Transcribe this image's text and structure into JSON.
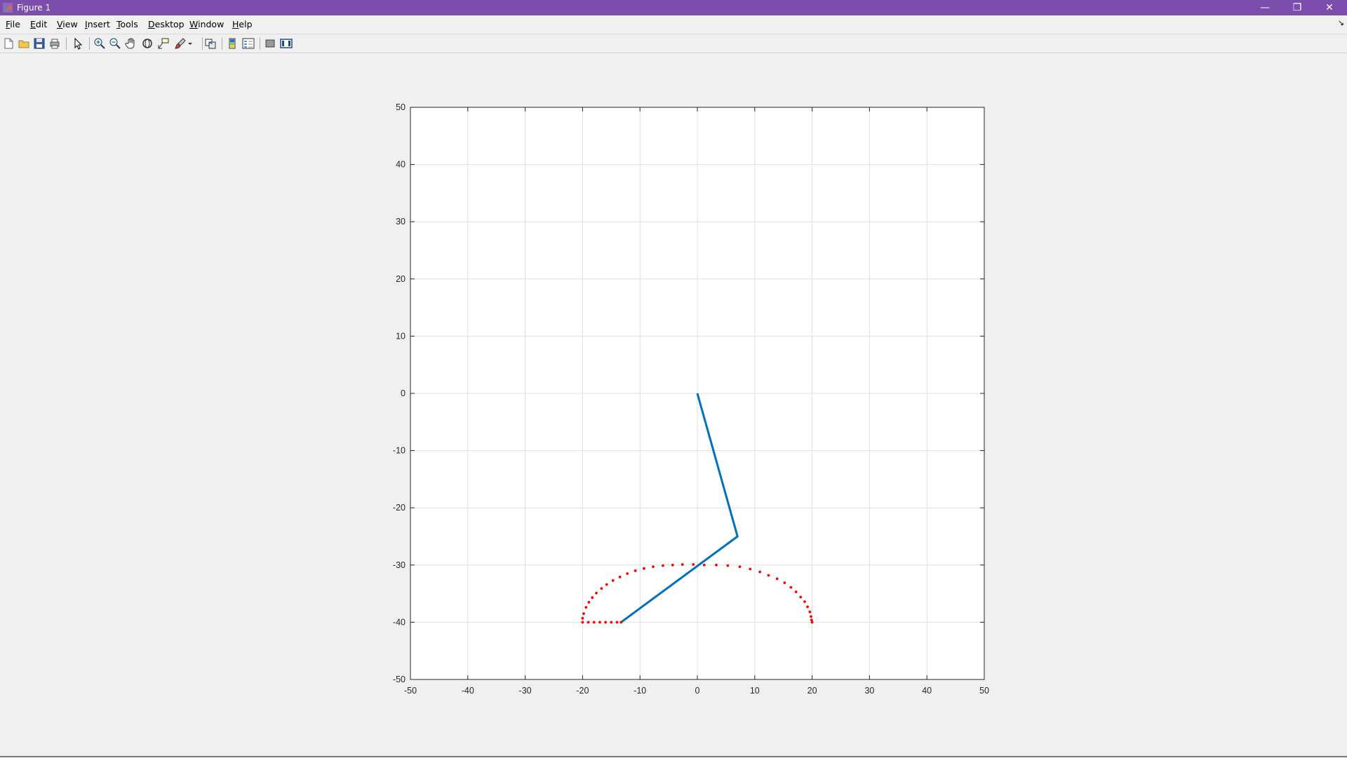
{
  "window": {
    "title": "Figure 1",
    "accent": "#7a4eaa",
    "minimize_glyph": "—",
    "restore_glyph": "❐",
    "close_glyph": "✕"
  },
  "menu": {
    "items": [
      {
        "mnemonic": "F",
        "rest": "ile"
      },
      {
        "mnemonic": "E",
        "rest": "dit"
      },
      {
        "mnemonic": "V",
        "rest": "iew"
      },
      {
        "mnemonic": "I",
        "rest": "nsert"
      },
      {
        "mnemonic": "T",
        "rest": "ools"
      },
      {
        "mnemonic": "D",
        "rest": "esktop"
      },
      {
        "mnemonic": "W",
        "rest": "indow"
      },
      {
        "mnemonic": "H",
        "rest": "elp"
      }
    ],
    "overflow_glyph": "↘"
  },
  "toolbar": {
    "icons": [
      "new-figure-icon",
      "open-file-icon",
      "save-icon",
      "print-icon",
      "edit-plot-arrow-icon",
      "zoom-in-icon",
      "zoom-out-icon",
      "pan-hand-icon",
      "rotate-3d-icon",
      "data-cursor-icon",
      "brush-icon",
      "brush-dropdown-icon",
      "link-plot-icon",
      "colorbar-icon",
      "legend-icon",
      "hide-plot-tools-icon",
      "show-plot-tools-icon"
    ]
  },
  "chart_data": {
    "type": "line",
    "xlim": [
      -50,
      50
    ],
    "ylim": [
      -50,
      50
    ],
    "xticks": [
      -50,
      -40,
      -30,
      -20,
      -10,
      0,
      10,
      20,
      30,
      40,
      50
    ],
    "yticks": [
      50,
      40,
      30,
      20,
      10,
      0,
      -10,
      -20,
      -30,
      -40,
      -50
    ],
    "grid": true,
    "series": [
      {
        "style": "line",
        "color": "#0072bd",
        "x": [
          0,
          7,
          -13.3
        ],
        "y": [
          0,
          -25,
          -40
        ]
      },
      {
        "style": "dots",
        "color": "#ff0000",
        "points": [
          [
            -20,
            -40
          ],
          [
            -19,
            -40
          ],
          [
            -18,
            -40
          ],
          [
            -17,
            -40
          ],
          [
            -16,
            -40
          ],
          [
            -15,
            -40
          ],
          [
            -14,
            -40
          ],
          [
            -13.3,
            -40
          ],
          [
            -20,
            -39.3
          ],
          [
            -19.8,
            -38.5
          ],
          [
            -19.4,
            -37.4
          ],
          [
            -18.9,
            -36.5
          ],
          [
            -18.3,
            -35.7
          ],
          [
            -17.6,
            -34.9
          ],
          [
            -16.7,
            -34.1
          ],
          [
            -15.8,
            -33.4
          ],
          [
            -14.7,
            -32.7
          ],
          [
            -13.5,
            -32.1
          ],
          [
            -12.2,
            -31.5
          ],
          [
            -10.8,
            -31
          ],
          [
            -9.3,
            -30.6
          ],
          [
            -7.7,
            -30.3
          ],
          [
            -6,
            -30.1
          ],
          [
            -4.3,
            -30
          ],
          [
            -2.6,
            -29.9
          ],
          [
            -0.7,
            -29.9
          ],
          [
            1.2,
            -30
          ],
          [
            3.3,
            -30
          ],
          [
            5.3,
            -30.1
          ],
          [
            7.4,
            -30.3
          ],
          [
            9.2,
            -30.7
          ],
          [
            10.9,
            -31.2
          ],
          [
            12.4,
            -31.8
          ],
          [
            13.9,
            -32.4
          ],
          [
            15.2,
            -33.1
          ],
          [
            16.3,
            -33.9
          ],
          [
            17.2,
            -34.7
          ],
          [
            18,
            -35.6
          ],
          [
            18.7,
            -36.4
          ],
          [
            19.2,
            -37.3
          ],
          [
            19.6,
            -38.2
          ],
          [
            19.8,
            -39
          ],
          [
            19.9,
            -39.6
          ],
          [
            20,
            -40
          ]
        ]
      }
    ]
  }
}
